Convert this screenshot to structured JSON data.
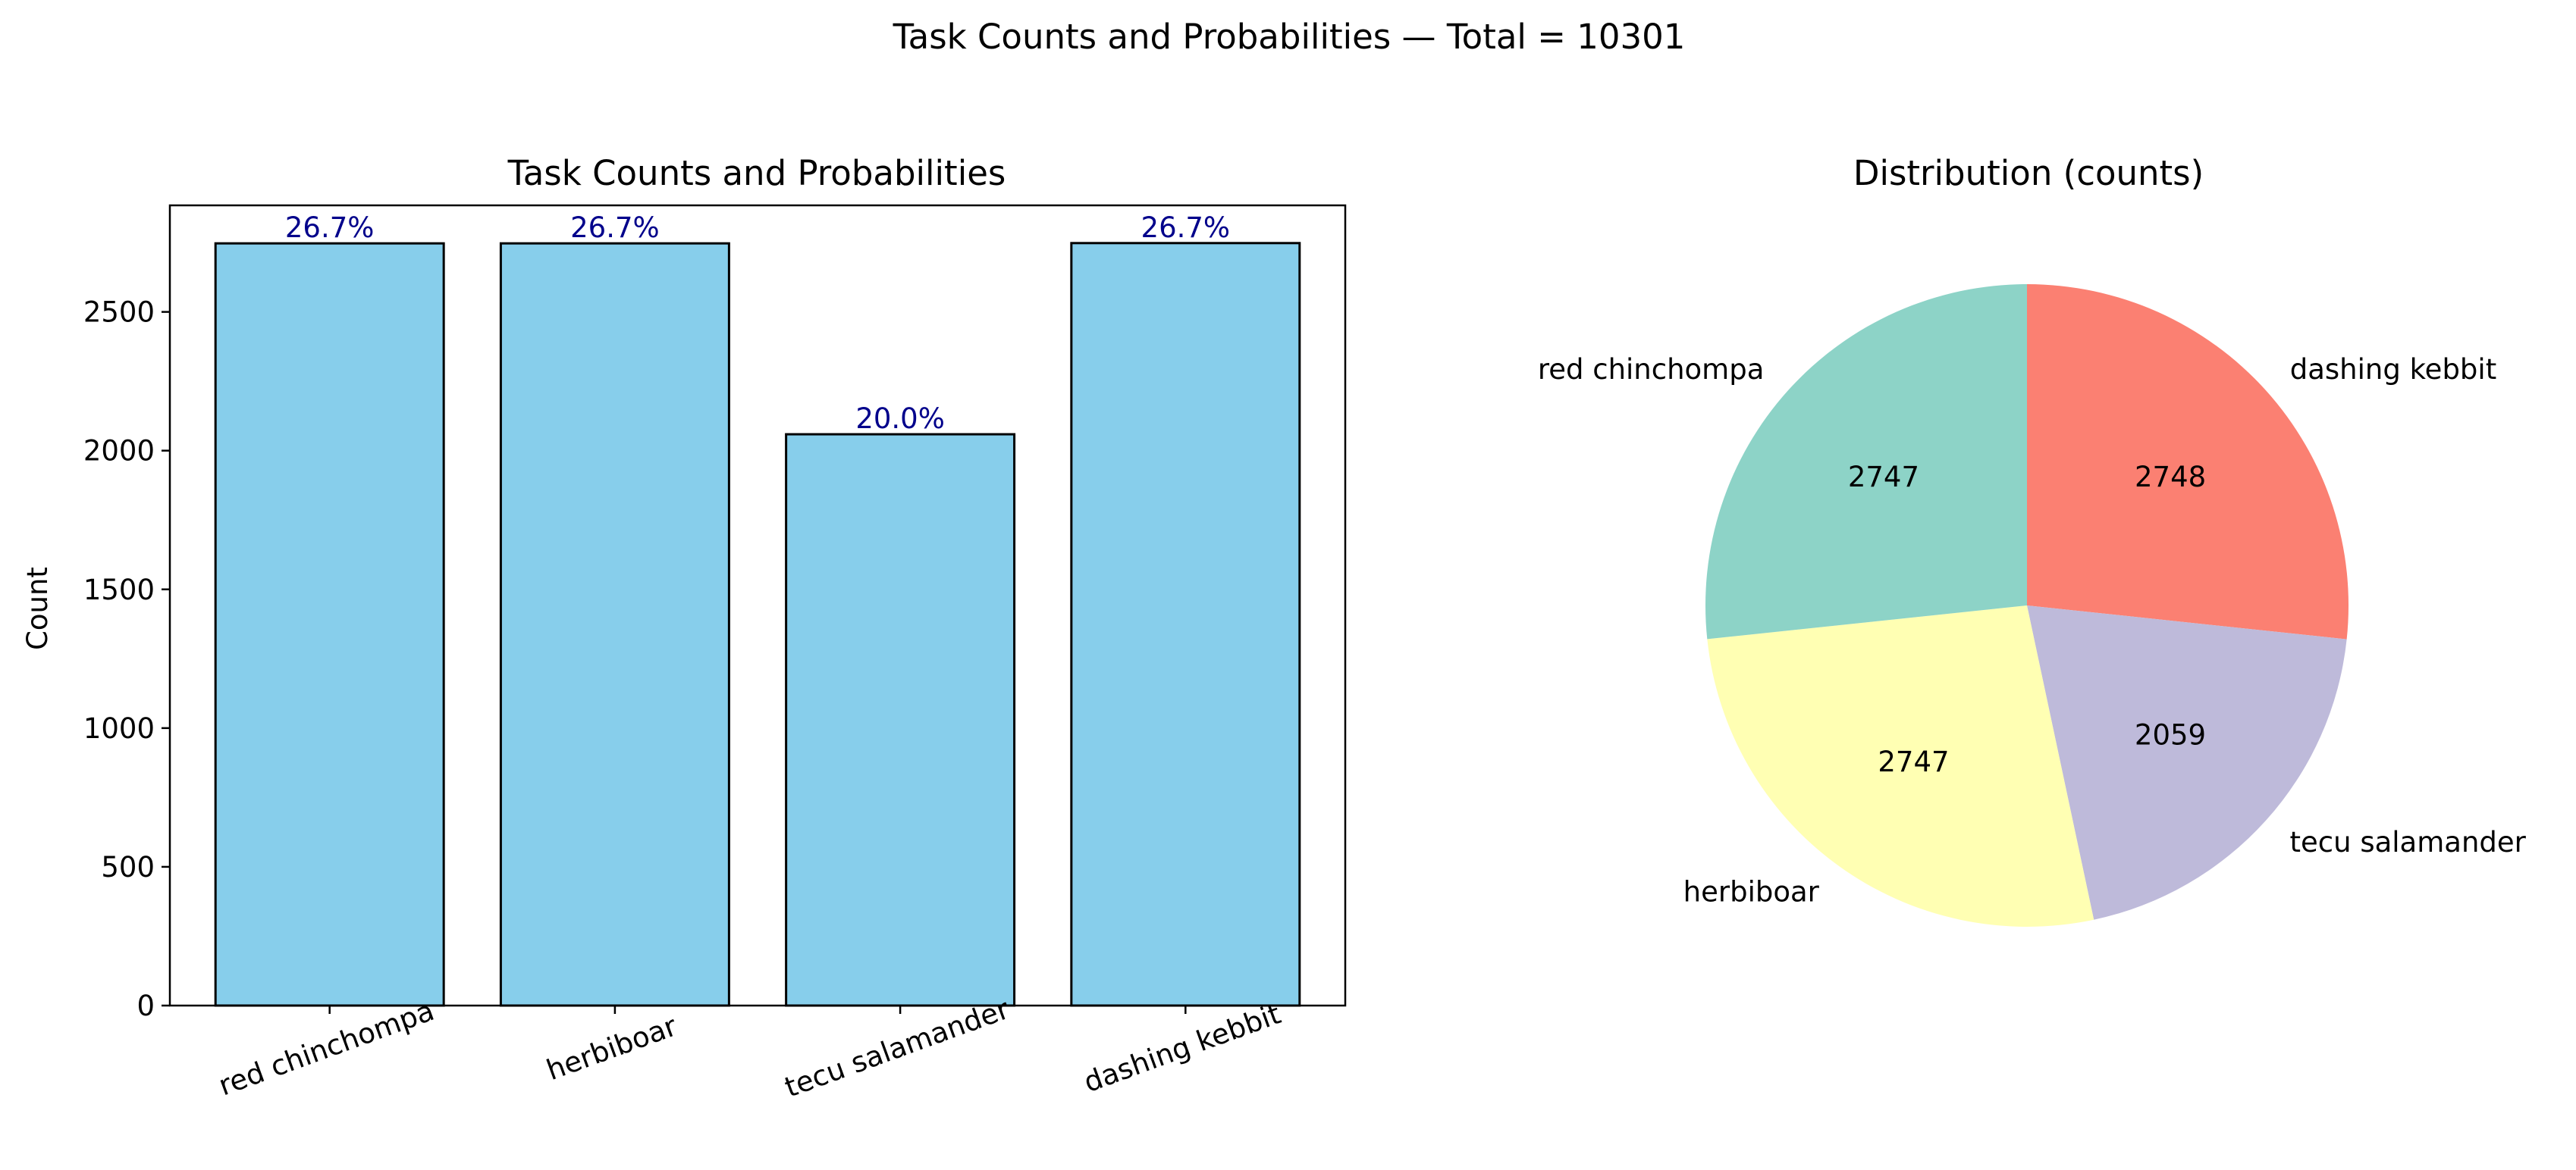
{
  "figure": {
    "suptitle": "Task Counts and Probabilities — Total = 10301"
  },
  "chart_data": [
    {
      "type": "bar",
      "title": "Task Counts and Probabilities",
      "xlabel": "",
      "ylabel": "Count",
      "categories": [
        "red chinchompa",
        "herbiboar",
        "tecu salamander",
        "dashing kebbit"
      ],
      "values": [
        2747,
        2747,
        2059,
        2748
      ],
      "data_labels": [
        "26.7%",
        "26.7%",
        "20.0%",
        "26.7%"
      ],
      "ylim": [
        0,
        2884
      ],
      "yticks": [
        0,
        500,
        1000,
        1500,
        2000,
        2500
      ],
      "grid": false,
      "bar_color": "#87ceeb",
      "edge_color": "#000000",
      "label_color": "#00008b"
    },
    {
      "type": "pie",
      "title": "Distribution (counts)",
      "labels": [
        "dashing kebbit",
        "tecu salamander",
        "herbiboar",
        "red chinchompa"
      ],
      "values": [
        2748,
        2059,
        2747,
        2747
      ],
      "value_labels": [
        "2748",
        "2059",
        "2747",
        "2747"
      ],
      "colors": [
        "#fb8072",
        "#bebada",
        "#ffffb3",
        "#8dd3c7"
      ],
      "start_angle_deg": 90,
      "direction": "clockwise"
    }
  ]
}
